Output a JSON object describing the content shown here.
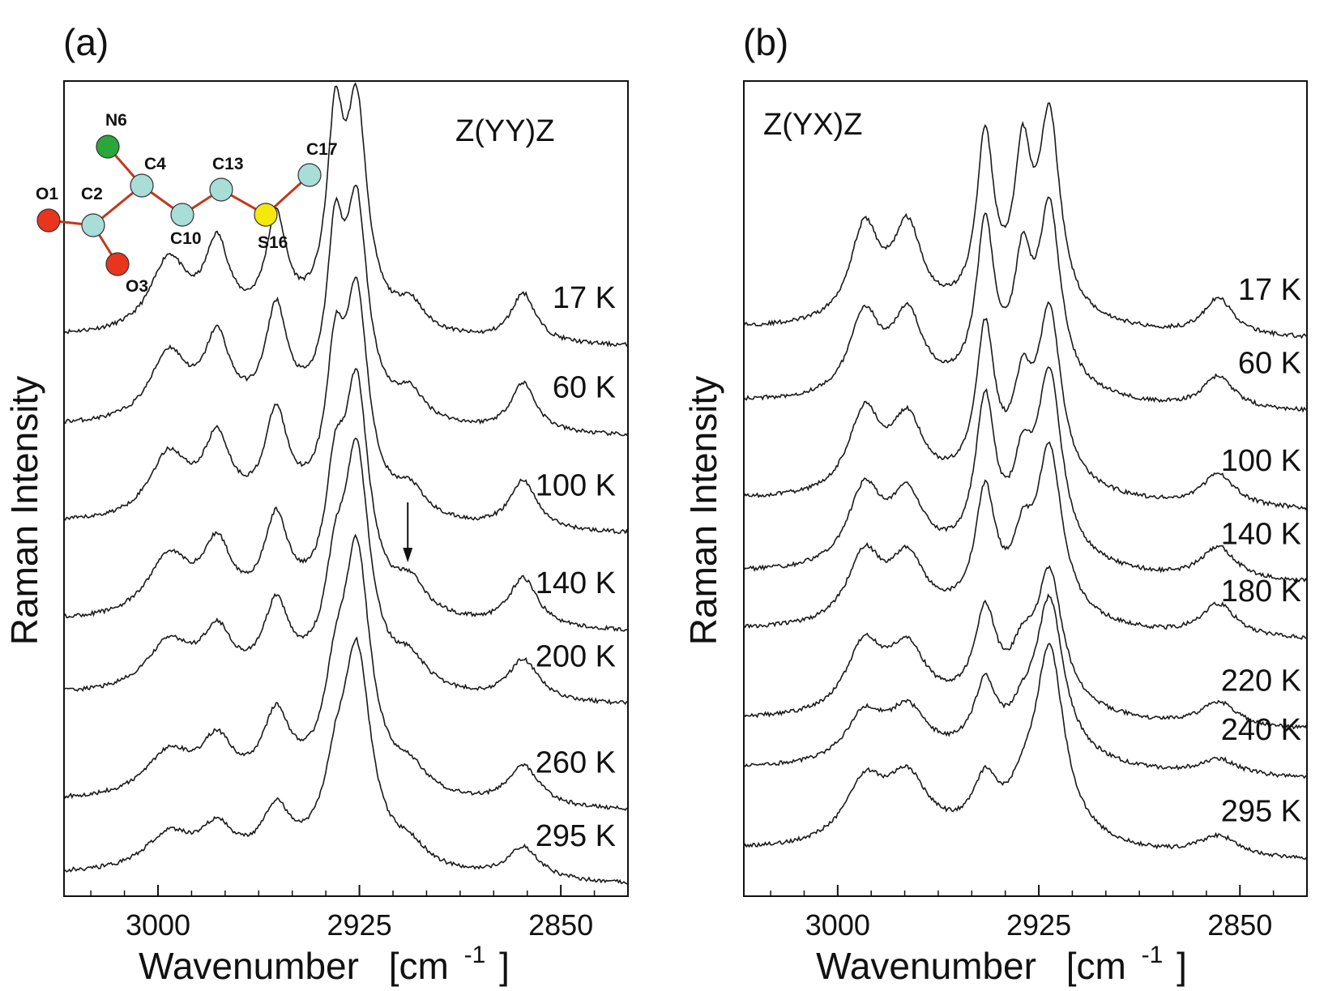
{
  "chart_data": [
    {
      "type": "line",
      "panel_label": "(a)",
      "annotation": "Z(YY)Z",
      "xlabel": "Wavenumber",
      "xlabel_unit": "[cm",
      "xlabel_exp": "-1",
      "xlabel_close": "]",
      "ylabel": "Raman Intensity",
      "xlim": [
        3035,
        2825
      ],
      "x_reversed": true,
      "xticks": [
        3000,
        2925,
        2850
      ],
      "xtick_labels": [
        "3000",
        "2925",
        "2850"
      ],
      "ylim": [
        0,
        10
      ],
      "yticks_shown": false,
      "legend": "none",
      "grid": false,
      "peaks_cm1": [
        2996,
        2978,
        2956,
        2934,
        2926,
        2906,
        2864
      ],
      "series": [
        {
          "name": "17 K",
          "offset": 6.8,
          "amplitudes": [
            0.9,
            1.0,
            1.25,
            2.2,
            2.5,
            0.3,
            0.6
          ],
          "width_scale": 0.55
        },
        {
          "name": "60 K",
          "offset": 5.7,
          "amplitudes": [
            0.85,
            0.95,
            1.25,
            1.9,
            2.4,
            0.3,
            0.6
          ],
          "width_scale": 0.6
        },
        {
          "name": "100 K",
          "offset": 4.5,
          "amplitudes": [
            0.8,
            0.9,
            1.15,
            1.6,
            2.5,
            0.3,
            0.6
          ],
          "width_scale": 0.7
        },
        {
          "name": "140 K",
          "offset": 3.3,
          "amplitudes": [
            0.75,
            0.8,
            1.05,
            1.3,
            2.6,
            0.35,
            0.6
          ],
          "width_scale": 0.8
        },
        {
          "name": "200 K",
          "offset": 2.4,
          "amplitudes": [
            0.6,
            0.65,
            0.9,
            1.0,
            2.7,
            0.3,
            0.5
          ],
          "width_scale": 0.9
        },
        {
          "name": "260 K",
          "offset": 1.1,
          "amplitudes": [
            0.55,
            0.6,
            0.85,
            0.9,
            2.8,
            0.25,
            0.5
          ],
          "width_scale": 1.0
        },
        {
          "name": "295 K",
          "offset": 0.2,
          "amplitudes": [
            0.45,
            0.45,
            0.6,
            0.7,
            2.5,
            0.2,
            0.4
          ],
          "width_scale": 1.1
        }
      ],
      "arrow_at_cm1": 2907,
      "molecule": {
        "atoms": [
          {
            "label": "N6",
            "color": "#2aa63a"
          },
          {
            "label": "C4",
            "color": "#a8ddd8"
          },
          {
            "label": "C13",
            "color": "#a8ddd8"
          },
          {
            "label": "C17",
            "color": "#a8ddd8"
          },
          {
            "label": "O1",
            "color": "#e8351e"
          },
          {
            "label": "C2",
            "color": "#a8ddd8"
          },
          {
            "label": "C10",
            "color": "#a8ddd8"
          },
          {
            "label": "S16",
            "color": "#f5e80c"
          },
          {
            "label": "O3",
            "color": "#e8351e"
          }
        ],
        "bond_color": "#c0391b"
      }
    },
    {
      "type": "line",
      "panel_label": "(b)",
      "annotation": "Z(YX)Z",
      "xlabel": "Wavenumber",
      "xlabel_unit": "[cm",
      "xlabel_exp": "-1",
      "xlabel_close": "]",
      "ylabel": "Raman Intensity",
      "xlim": [
        3035,
        2825
      ],
      "x_reversed": true,
      "xticks": [
        3000,
        2925,
        2850
      ],
      "xtick_labels": [
        "3000",
        "2925",
        "2850"
      ],
      "ylim": [
        0,
        10
      ],
      "yticks_shown": false,
      "legend": "none",
      "grid": false,
      "peaks_cm1": [
        2990,
        2974,
        2945,
        2931,
        2921,
        2858
      ],
      "series": [
        {
          "name": "17 K",
          "offset": 6.9,
          "amplitudes": [
            1.15,
            1.1,
            2.1,
            1.75,
            2.35,
            0.45
          ],
          "width_scale": 0.6
        },
        {
          "name": "60 K",
          "offset": 6.0,
          "amplitudes": [
            1.0,
            0.95,
            1.95,
            1.35,
            2.15,
            0.4
          ],
          "width_scale": 0.65
        },
        {
          "name": "100 K",
          "offset": 4.8,
          "amplitudes": [
            1.0,
            0.85,
            1.85,
            1.0,
            2.1,
            0.4
          ],
          "width_scale": 0.75
        },
        {
          "name": "140 K",
          "offset": 3.9,
          "amplitudes": [
            0.95,
            0.8,
            1.85,
            0.9,
            2.2,
            0.4
          ],
          "width_scale": 0.85
        },
        {
          "name": "180 K",
          "offset": 3.2,
          "amplitudes": [
            0.85,
            0.75,
            1.45,
            0.7,
            2.0,
            0.4
          ],
          "width_scale": 0.9
        },
        {
          "name": "220 K",
          "offset": 2.1,
          "amplitudes": [
            0.85,
            0.75,
            1.1,
            0.5,
            1.6,
            0.3
          ],
          "width_scale": 1.0
        },
        {
          "name": "240 K",
          "offset": 1.5,
          "amplitudes": [
            0.6,
            0.6,
            0.8,
            0.3,
            1.9,
            0.2
          ],
          "width_scale": 1.1
        },
        {
          "name": "295 K",
          "offset": 0.5,
          "amplitudes": [
            0.75,
            0.75,
            0.6,
            0.3,
            2.3,
            0.25
          ],
          "width_scale": 1.2
        }
      ]
    }
  ]
}
